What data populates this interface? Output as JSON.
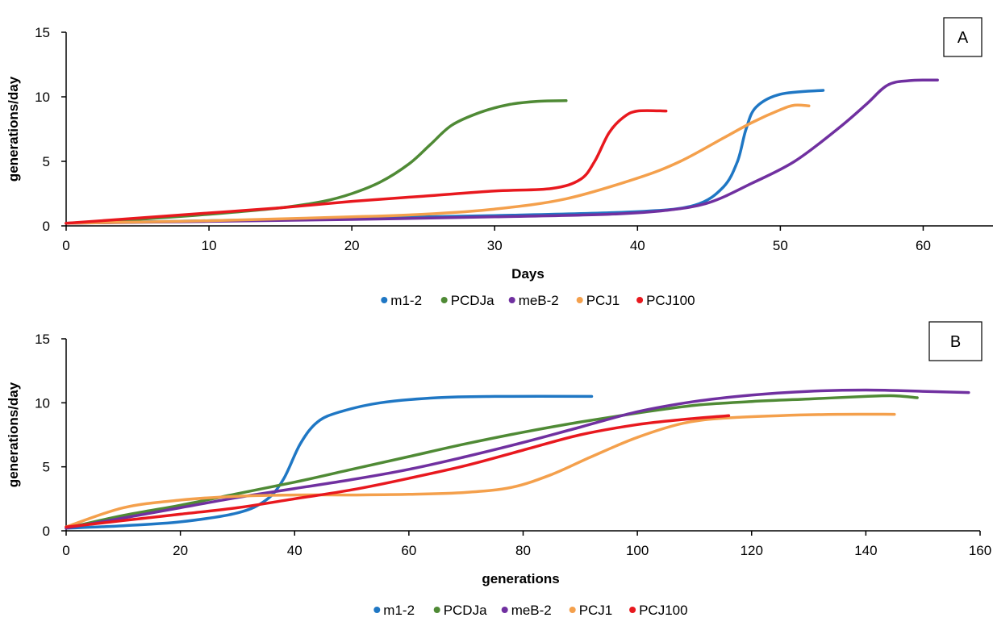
{
  "chart_data": [
    {
      "type": "line",
      "panel_label": "A",
      "xlabel": "Days",
      "ylabel": "generations/day",
      "xlim": [
        0,
        65
      ],
      "ylim": [
        0,
        15
      ],
      "x_ticks": [
        "0",
        "10",
        "20",
        "30",
        "40",
        "50",
        "60"
      ],
      "y_ticks": [
        "0",
        "5",
        "10",
        "15"
      ],
      "grid": false,
      "legend_position": "bottom",
      "series": [
        {
          "name": "m1-2",
          "color": "#1f77c4",
          "points": [
            [
              0,
              0.2
            ],
            [
              10,
              0.4
            ],
            [
              20,
              0.6
            ],
            [
              30,
              0.8
            ],
            [
              40,
              1.1
            ],
            [
              44,
              1.6
            ],
            [
              46,
              3
            ],
            [
              47,
              5
            ],
            [
              47.6,
              7.5
            ],
            [
              48.3,
              9.2
            ],
            [
              50,
              10.2
            ],
            [
              53,
              10.5
            ]
          ]
        },
        {
          "name": "PCDJa",
          "color": "#4f8a35",
          "points": [
            [
              0,
              0.2
            ],
            [
              5,
              0.5
            ],
            [
              10,
              0.9
            ],
            [
              15,
              1.4
            ],
            [
              18,
              1.9
            ],
            [
              20,
              2.5
            ],
            [
              22,
              3.4
            ],
            [
              24,
              4.8
            ],
            [
              25.5,
              6.3
            ],
            [
              27,
              7.8
            ],
            [
              29,
              8.8
            ],
            [
              31,
              9.4
            ],
            [
              33,
              9.65
            ],
            [
              35,
              9.7
            ]
          ]
        },
        {
          "name": "meB-2",
          "color": "#7030a0",
          "points": [
            [
              0,
              0.2
            ],
            [
              10,
              0.35
            ],
            [
              20,
              0.5
            ],
            [
              30,
              0.7
            ],
            [
              38,
              0.9
            ],
            [
              42,
              1.2
            ],
            [
              45,
              1.8
            ],
            [
              48,
              3.3
            ],
            [
              51,
              5
            ],
            [
              54,
              7.5
            ],
            [
              56,
              9.4
            ],
            [
              57.5,
              10.9
            ],
            [
              59,
              11.25
            ],
            [
              61,
              11.3
            ]
          ]
        },
        {
          "name": "PCJ1",
          "color": "#f4a04c",
          "points": [
            [
              0,
              0.2
            ],
            [
              10,
              0.4
            ],
            [
              20,
              0.7
            ],
            [
              25,
              0.9
            ],
            [
              30,
              1.3
            ],
            [
              35,
              2.1
            ],
            [
              40,
              3.7
            ],
            [
              43,
              5
            ],
            [
              46,
              6.8
            ],
            [
              48,
              8
            ],
            [
              50,
              9
            ],
            [
              51,
              9.35
            ],
            [
              52,
              9.3
            ]
          ]
        },
        {
          "name": "PCJ100",
          "color": "#e8181e",
          "points": [
            [
              0,
              0.2
            ],
            [
              5,
              0.6
            ],
            [
              10,
              1
            ],
            [
              15,
              1.4
            ],
            [
              20,
              1.9
            ],
            [
              25,
              2.3
            ],
            [
              30,
              2.7
            ],
            [
              34,
              2.9
            ],
            [
              36,
              3.6
            ],
            [
              37,
              5
            ],
            [
              38,
              7.2
            ],
            [
              39,
              8.4
            ],
            [
              40,
              8.9
            ],
            [
              42,
              8.9
            ]
          ]
        }
      ]
    },
    {
      "type": "line",
      "panel_label": "B",
      "xlabel": "generations",
      "ylabel": "generations/day",
      "xlim": [
        0,
        160
      ],
      "ylim": [
        0,
        15
      ],
      "x_ticks": [
        "0",
        "20",
        "40",
        "60",
        "80",
        "100",
        "120",
        "140",
        "160"
      ],
      "y_ticks": [
        "0",
        "5",
        "10",
        "15"
      ],
      "grid": false,
      "legend_position": "bottom",
      "series": [
        {
          "name": "m1-2",
          "color": "#1f77c4",
          "points": [
            [
              0,
              0.2
            ],
            [
              10,
              0.4
            ],
            [
              20,
              0.7
            ],
            [
              30,
              1.4
            ],
            [
              35,
              2.4
            ],
            [
              38,
              4
            ],
            [
              41,
              6.8
            ],
            [
              44,
              8.5
            ],
            [
              48,
              9.3
            ],
            [
              55,
              10
            ],
            [
              65,
              10.4
            ],
            [
              75,
              10.5
            ],
            [
              92,
              10.5
            ]
          ]
        },
        {
          "name": "PCDJa",
          "color": "#4f8a35",
          "points": [
            [
              0,
              0.2
            ],
            [
              10,
              1.2
            ],
            [
              20,
              2
            ],
            [
              30,
              2.9
            ],
            [
              40,
              3.8
            ],
            [
              50,
              4.8
            ],
            [
              60,
              5.8
            ],
            [
              70,
              6.8
            ],
            [
              80,
              7.7
            ],
            [
              90,
              8.5
            ],
            [
              100,
              9.2
            ],
            [
              110,
              9.8
            ],
            [
              120,
              10.1
            ],
            [
              130,
              10.3
            ],
            [
              140,
              10.5
            ],
            [
              145,
              10.55
            ],
            [
              149,
              10.4
            ]
          ]
        },
        {
          "name": "meB-2",
          "color": "#7030a0",
          "points": [
            [
              0,
              0.2
            ],
            [
              10,
              1
            ],
            [
              20,
              1.8
            ],
            [
              30,
              2.6
            ],
            [
              40,
              3.3
            ],
            [
              50,
              4
            ],
            [
              60,
              4.8
            ],
            [
              70,
              5.8
            ],
            [
              80,
              6.9
            ],
            [
              90,
              8.1
            ],
            [
              100,
              9.3
            ],
            [
              110,
              10.1
            ],
            [
              120,
              10.6
            ],
            [
              130,
              10.9
            ],
            [
              140,
              11
            ],
            [
              150,
              10.9
            ],
            [
              158,
              10.8
            ]
          ]
        },
        {
          "name": "PCJ1",
          "color": "#f4a04c",
          "points": [
            [
              0,
              0.3
            ],
            [
              10,
              1.8
            ],
            [
              20,
              2.4
            ],
            [
              30,
              2.7
            ],
            [
              40,
              2.8
            ],
            [
              50,
              2.8
            ],
            [
              60,
              2.85
            ],
            [
              70,
              3
            ],
            [
              78,
              3.4
            ],
            [
              85,
              4.4
            ],
            [
              92,
              5.8
            ],
            [
              100,
              7.3
            ],
            [
              108,
              8.4
            ],
            [
              115,
              8.8
            ],
            [
              125,
              9
            ],
            [
              135,
              9.1
            ],
            [
              145,
              9.1
            ]
          ]
        },
        {
          "name": "PCJ100",
          "color": "#e8181e",
          "points": [
            [
              0,
              0.3
            ],
            [
              10,
              0.8
            ],
            [
              20,
              1.3
            ],
            [
              30,
              1.8
            ],
            [
              40,
              2.5
            ],
            [
              50,
              3.2
            ],
            [
              60,
              4.1
            ],
            [
              70,
              5.1
            ],
            [
              80,
              6.3
            ],
            [
              90,
              7.5
            ],
            [
              100,
              8.3
            ],
            [
              108,
              8.7
            ],
            [
              116,
              9
            ]
          ]
        }
      ]
    }
  ]
}
